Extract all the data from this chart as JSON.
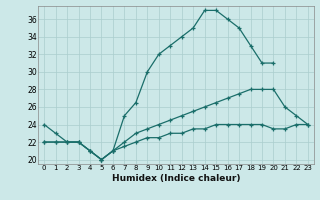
{
  "xlabel": "Humidex (Indice chaleur)",
  "background_color": "#cce8e8",
  "grid_color": "#aacece",
  "line_color": "#1a6e6a",
  "xlim": [
    -0.5,
    23.5
  ],
  "ylim": [
    19.5,
    37.5
  ],
  "yticks": [
    20,
    22,
    24,
    26,
    28,
    30,
    32,
    34,
    36
  ],
  "xticks": [
    0,
    1,
    2,
    3,
    4,
    5,
    6,
    7,
    8,
    9,
    10,
    11,
    12,
    13,
    14,
    15,
    16,
    17,
    18,
    19,
    20,
    21,
    22,
    23
  ],
  "line1_x": [
    0,
    1,
    2,
    3,
    4,
    5,
    6,
    7,
    8,
    9,
    10,
    11,
    12,
    13,
    14,
    15,
    16,
    17,
    18,
    19,
    20
  ],
  "line1_y": [
    24,
    23,
    22,
    22,
    21,
    20,
    21,
    25,
    26.5,
    30,
    32,
    33,
    34,
    35,
    37,
    37,
    36,
    35,
    33,
    31,
    31
  ],
  "line2_x": [
    0,
    1,
    2,
    3,
    4,
    5,
    6,
    7,
    8,
    9,
    10,
    11,
    12,
    13,
    14,
    15,
    16,
    17,
    18,
    19,
    20,
    21,
    22,
    23
  ],
  "line2_y": [
    22,
    22,
    22,
    22,
    21,
    20,
    21,
    22,
    23,
    23.5,
    24,
    24.5,
    25,
    25.5,
    26,
    26.5,
    27,
    27.5,
    28,
    28,
    28,
    26,
    25,
    24
  ],
  "line3_x": [
    0,
    1,
    2,
    3,
    4,
    5,
    6,
    7,
    8,
    9,
    10,
    11,
    12,
    13,
    14,
    15,
    16,
    17,
    18,
    19,
    20,
    21,
    22,
    23
  ],
  "line3_y": [
    22,
    22,
    22,
    22,
    21,
    20,
    21,
    21.5,
    22,
    22.5,
    22.5,
    23,
    23,
    23.5,
    23.5,
    24,
    24,
    24,
    24,
    24,
    23.5,
    23.5,
    24,
    24
  ]
}
